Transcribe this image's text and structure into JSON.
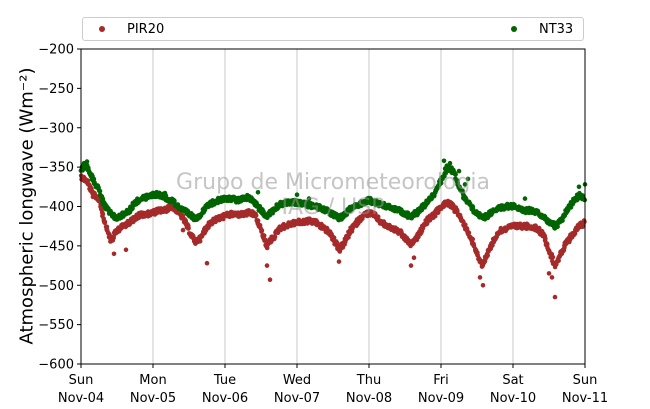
{
  "chart_data": {
    "type": "scatter",
    "xlabel": "",
    "ylabel": "Atmospheric longwave (Wm⁻²)",
    "ylim": [
      -600,
      -200
    ],
    "yticks": [
      -200,
      -250,
      -300,
      -350,
      -400,
      -450,
      -500,
      -550,
      -600
    ],
    "xlim": [
      "2018-11-04",
      "2018-11-11"
    ],
    "xtick_labels": [
      {
        "day": "Sun",
        "date": "Nov-04"
      },
      {
        "day": "Mon",
        "date": "Nov-05"
      },
      {
        "day": "Tue",
        "date": "Nov-06"
      },
      {
        "day": "Wed",
        "date": "Nov-07"
      },
      {
        "day": "Thu",
        "date": "Nov-08"
      },
      {
        "day": "Fri",
        "date": "Nov-09"
      },
      {
        "day": "Sat",
        "date": "Nov-10"
      },
      {
        "day": "Sun",
        "date": "Nov-11"
      }
    ],
    "grid": "vertical",
    "legend_position": "top",
    "watermark": [
      "Grupo de Micrometeorologia",
      "IAG / USP"
    ],
    "series": [
      {
        "name": "PIR20",
        "color": "#a52a2a",
        "points": [
          [
            "2018-11-04T00:00",
            -362
          ],
          [
            "2018-11-04T02:00",
            -368
          ],
          [
            "2018-11-04T04:00",
            -385
          ],
          [
            "2018-11-04T06:00",
            -390
          ],
          [
            "2018-11-04T08:00",
            -420
          ],
          [
            "2018-11-04T10:00",
            -445
          ],
          [
            "2018-11-04T12:00",
            -430
          ],
          [
            "2018-11-04T14:00",
            -425
          ],
          [
            "2018-11-04T16:00",
            -420
          ],
          [
            "2018-11-04T18:00",
            -415
          ],
          [
            "2018-11-04T20:00",
            -410
          ],
          [
            "2018-11-04T22:00",
            -410
          ],
          [
            "2018-11-05T00:00",
            -408
          ],
          [
            "2018-11-05T02:00",
            -405
          ],
          [
            "2018-11-05T04:00",
            -405
          ],
          [
            "2018-11-05T06:00",
            -400
          ],
          [
            "2018-11-05T08:00",
            -405
          ],
          [
            "2018-11-05T10:00",
            -415
          ],
          [
            "2018-11-05T12:00",
            -430
          ],
          [
            "2018-11-05T14:00",
            -445
          ],
          [
            "2018-11-05T16:00",
            -440
          ],
          [
            "2018-11-05T18:00",
            -425
          ],
          [
            "2018-11-05T20:00",
            -418
          ],
          [
            "2018-11-05T22:00",
            -415
          ],
          [
            "2018-11-06T00:00",
            -412
          ],
          [
            "2018-11-06T02:00",
            -410
          ],
          [
            "2018-11-06T04:00",
            -410
          ],
          [
            "2018-11-06T06:00",
            -410
          ],
          [
            "2018-11-06T08:00",
            -408
          ],
          [
            "2018-11-06T10:00",
            -410
          ],
          [
            "2018-11-06T12:00",
            -430
          ],
          [
            "2018-11-06T14:00",
            -450
          ],
          [
            "2018-11-06T16:00",
            -440
          ],
          [
            "2018-11-06T18:00",
            -428
          ],
          [
            "2018-11-06T20:00",
            -425
          ],
          [
            "2018-11-06T22:00",
            -422
          ],
          [
            "2018-11-07T00:00",
            -420
          ],
          [
            "2018-11-07T02:00",
            -420
          ],
          [
            "2018-11-07T04:00",
            -418
          ],
          [
            "2018-11-07T06:00",
            -420
          ],
          [
            "2018-11-07T08:00",
            -425
          ],
          [
            "2018-11-07T10:00",
            -430
          ],
          [
            "2018-11-07T12:00",
            -440
          ],
          [
            "2018-11-07T14:00",
            -455
          ],
          [
            "2018-11-07T16:00",
            -445
          ],
          [
            "2018-11-07T18:00",
            -430
          ],
          [
            "2018-11-07T20:00",
            -420
          ],
          [
            "2018-11-07T22:00",
            -412
          ],
          [
            "2018-11-08T00:00",
            -408
          ],
          [
            "2018-11-08T02:00",
            -412
          ],
          [
            "2018-11-08T04:00",
            -420
          ],
          [
            "2018-11-08T06:00",
            -425
          ],
          [
            "2018-11-08T08:00",
            -428
          ],
          [
            "2018-11-08T10:00",
            -432
          ],
          [
            "2018-11-08T12:00",
            -440
          ],
          [
            "2018-11-08T14:00",
            -448
          ],
          [
            "2018-11-08T16:00",
            -440
          ],
          [
            "2018-11-08T18:00",
            -425
          ],
          [
            "2018-11-08T20:00",
            -415
          ],
          [
            "2018-11-08T22:00",
            -410
          ],
          [
            "2018-11-09T00:00",
            -400
          ],
          [
            "2018-11-09T02:00",
            -395
          ],
          [
            "2018-11-09T04:00",
            -400
          ],
          [
            "2018-11-09T06:00",
            -410
          ],
          [
            "2018-11-09T08:00",
            -425
          ],
          [
            "2018-11-09T10:00",
            -440
          ],
          [
            "2018-11-09T12:00",
            -460
          ],
          [
            "2018-11-09T14:00",
            -475
          ],
          [
            "2018-11-09T16:00",
            -455
          ],
          [
            "2018-11-09T18:00",
            -440
          ],
          [
            "2018-11-09T20:00",
            -430
          ],
          [
            "2018-11-09T22:00",
            -428
          ],
          [
            "2018-11-10T00:00",
            -425
          ],
          [
            "2018-11-10T02:00",
            -425
          ],
          [
            "2018-11-10T04:00",
            -425
          ],
          [
            "2018-11-10T06:00",
            -425
          ],
          [
            "2018-11-10T08:00",
            -428
          ],
          [
            "2018-11-10T10:00",
            -435
          ],
          [
            "2018-11-10T12:00",
            -455
          ],
          [
            "2018-11-10T14:00",
            -475
          ],
          [
            "2018-11-10T16:00",
            -460
          ],
          [
            "2018-11-10T18:00",
            -445
          ],
          [
            "2018-11-10T20:00",
            -435
          ],
          [
            "2018-11-10T22:00",
            -425
          ],
          [
            "2018-11-11T00:00",
            -420
          ]
        ],
        "outliers": [
          [
            "2018-11-04T11:00",
            -460
          ],
          [
            "2018-11-04T15:00",
            -455
          ],
          [
            "2018-11-05T10:00",
            -430
          ],
          [
            "2018-11-05T18:00",
            -472
          ],
          [
            "2018-11-06T15:00",
            -493
          ],
          [
            "2018-11-06T14:00",
            -475
          ],
          [
            "2018-11-07T14:00",
            -470
          ],
          [
            "2018-11-08T14:00",
            -475
          ],
          [
            "2018-11-08T15:00",
            -465
          ],
          [
            "2018-11-09T14:00",
            -500
          ],
          [
            "2018-11-09T13:00",
            -490
          ],
          [
            "2018-11-10T13:00",
            -490
          ],
          [
            "2018-11-10T14:00",
            -515
          ],
          [
            "2018-11-10T12:00",
            -485
          ]
        ]
      },
      {
        "name": "NT33",
        "color": "#006400",
        "points": [
          [
            "2018-11-04T00:00",
            -352
          ],
          [
            "2018-11-04T02:00",
            -348
          ],
          [
            "2018-11-04T04:00",
            -365
          ],
          [
            "2018-11-04T06:00",
            -380
          ],
          [
            "2018-11-04T08:00",
            -400
          ],
          [
            "2018-11-04T10:00",
            -410
          ],
          [
            "2018-11-04T12:00",
            -415
          ],
          [
            "2018-11-04T14:00",
            -410
          ],
          [
            "2018-11-04T16:00",
            -405
          ],
          [
            "2018-11-04T18:00",
            -395
          ],
          [
            "2018-11-04T20:00",
            -390
          ],
          [
            "2018-11-04T22:00",
            -388
          ],
          [
            "2018-11-05T00:00",
            -385
          ],
          [
            "2018-11-05T02:00",
            -385
          ],
          [
            "2018-11-05T04:00",
            -388
          ],
          [
            "2018-11-05T06:00",
            -392
          ],
          [
            "2018-11-05T08:00",
            -398
          ],
          [
            "2018-11-05T10:00",
            -405
          ],
          [
            "2018-11-05T12:00",
            -410
          ],
          [
            "2018-11-05T14:00",
            -415
          ],
          [
            "2018-11-05T16:00",
            -410
          ],
          [
            "2018-11-05T18:00",
            -400
          ],
          [
            "2018-11-05T20:00",
            -395
          ],
          [
            "2018-11-05T22:00",
            -392
          ],
          [
            "2018-11-06T00:00",
            -390
          ],
          [
            "2018-11-06T02:00",
            -390
          ],
          [
            "2018-11-06T04:00",
            -392
          ],
          [
            "2018-11-06T06:00",
            -390
          ],
          [
            "2018-11-06T08:00",
            -388
          ],
          [
            "2018-11-06T10:00",
            -395
          ],
          [
            "2018-11-06T12:00",
            -405
          ],
          [
            "2018-11-06T14:00",
            -412
          ],
          [
            "2018-11-06T16:00",
            -405
          ],
          [
            "2018-11-06T18:00",
            -398
          ],
          [
            "2018-11-06T20:00",
            -395
          ],
          [
            "2018-11-06T22:00",
            -395
          ],
          [
            "2018-11-07T00:00",
            -395
          ],
          [
            "2018-11-07T02:00",
            -396
          ],
          [
            "2018-11-07T04:00",
            -398
          ],
          [
            "2018-11-07T06:00",
            -400
          ],
          [
            "2018-11-07T08:00",
            -402
          ],
          [
            "2018-11-07T10:00",
            -405
          ],
          [
            "2018-11-07T12:00",
            -410
          ],
          [
            "2018-11-07T14:00",
            -415
          ],
          [
            "2018-11-07T16:00",
            -410
          ],
          [
            "2018-11-07T18:00",
            -402
          ],
          [
            "2018-11-07T20:00",
            -398
          ],
          [
            "2018-11-07T22:00",
            -395
          ],
          [
            "2018-11-08T00:00",
            -392
          ],
          [
            "2018-11-08T02:00",
            -395
          ],
          [
            "2018-11-08T04:00",
            -398
          ],
          [
            "2018-11-08T06:00",
            -400
          ],
          [
            "2018-11-08T08:00",
            -402
          ],
          [
            "2018-11-08T10:00",
            -405
          ],
          [
            "2018-11-08T12:00",
            -410
          ],
          [
            "2018-11-08T14:00",
            -412
          ],
          [
            "2018-11-08T16:00",
            -408
          ],
          [
            "2018-11-08T18:00",
            -400
          ],
          [
            "2018-11-08T20:00",
            -392
          ],
          [
            "2018-11-08T22:00",
            -382
          ],
          [
            "2018-11-09T00:00",
            -368
          ],
          [
            "2018-11-09T02:00",
            -350
          ],
          [
            "2018-11-09T04:00",
            -355
          ],
          [
            "2018-11-09T06:00",
            -375
          ],
          [
            "2018-11-09T08:00",
            -390
          ],
          [
            "2018-11-09T10:00",
            -400
          ],
          [
            "2018-11-09T12:00",
            -410
          ],
          [
            "2018-11-09T14:00",
            -415
          ],
          [
            "2018-11-09T16:00",
            -410
          ],
          [
            "2018-11-09T18:00",
            -405
          ],
          [
            "2018-11-09T20:00",
            -402
          ],
          [
            "2018-11-09T22:00",
            -400
          ],
          [
            "2018-11-10T00:00",
            -400
          ],
          [
            "2018-11-10T02:00",
            -402
          ],
          [
            "2018-11-10T04:00",
            -405
          ],
          [
            "2018-11-10T06:00",
            -405
          ],
          [
            "2018-11-10T08:00",
            -408
          ],
          [
            "2018-11-10T10:00",
            -412
          ],
          [
            "2018-11-10T12:00",
            -420
          ],
          [
            "2018-11-10T14:00",
            -425
          ],
          [
            "2018-11-10T16:00",
            -418
          ],
          [
            "2018-11-10T18:00",
            -405
          ],
          [
            "2018-11-10T20:00",
            -395
          ],
          [
            "2018-11-10T22:00",
            -385
          ],
          [
            "2018-11-11T00:00",
            -390
          ]
        ],
        "outliers": [
          [
            "2018-11-04T01:00",
            -345
          ],
          [
            "2018-11-04T02:00",
            -343
          ],
          [
            "2018-11-05T04:00",
            -383
          ],
          [
            "2018-11-06T11:00",
            -382
          ],
          [
            "2018-11-07T00:00",
            -385
          ],
          [
            "2018-11-07T04:00",
            -390
          ],
          [
            "2018-11-09T01:00",
            -342
          ],
          [
            "2018-11-09T03:00",
            -345
          ],
          [
            "2018-11-09T06:00",
            -355
          ],
          [
            "2018-11-09T08:00",
            -372
          ],
          [
            "2018-11-09T09:00",
            -365
          ],
          [
            "2018-11-10T04:00",
            -390
          ],
          [
            "2018-11-10T22:00",
            -375
          ],
          [
            "2018-11-11T00:00",
            -372
          ]
        ]
      }
    ]
  }
}
